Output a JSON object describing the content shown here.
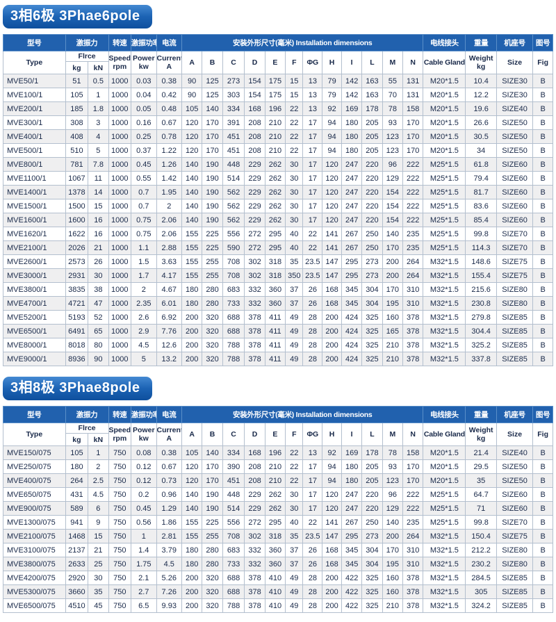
{
  "page": {
    "background": "#ffffff"
  },
  "colors": {
    "banner_blue_top": "#4489d2",
    "banner_blue_bottom": "#0e4f9d",
    "header_blue": "#2161ae",
    "header_text": "#ffffff",
    "body_text": "#1a2a4a",
    "row_alt": "#efeff0",
    "border": "#b3bfce"
  },
  "sections": [
    {
      "banner": "3相6极  3Phae6pole",
      "table": {
        "header": {
          "type_cn": "型号",
          "type_en": "Type",
          "force_cn": "激振力",
          "force_en": "Flrce",
          "force_kg": "kg",
          "force_kn": "kN",
          "speed_cn": "转速",
          "speed_en": "Speed",
          "speed_unit": "rpm",
          "power_cn": "激振功率",
          "power_en": "Power",
          "power_unit": "kw",
          "current_cn": "电流",
          "current_en": "Current",
          "current_unit": "A",
          "dims_label": "安装外形尺寸(毫米) Installation dimensions",
          "dim_cols": [
            "A",
            "B",
            "C",
            "D",
            "E",
            "F",
            "ΦG",
            "H",
            "I",
            "L",
            "M",
            "N"
          ],
          "cable_cn": "电线接头",
          "cable_en": "Cable Gland",
          "weight_cn": "重量",
          "weight_en": "Weight",
          "weight_unit": "kg",
          "size_cn": "机座号",
          "size_en": "Size",
          "fig_cn": "图号",
          "fig_en": "Fig"
        },
        "rows": [
          [
            "MVE50/1",
            "51",
            "0.5",
            "1000",
            "0.03",
            "0.38",
            "90",
            "125",
            "273",
            "154",
            "175",
            "15",
            "13",
            "79",
            "142",
            "163",
            "55",
            "131",
            "M20*1.5",
            "10.4",
            "SIZE30",
            "B"
          ],
          [
            "MVE100/1",
            "105",
            "1",
            "1000",
            "0.04",
            "0.42",
            "90",
            "125",
            "303",
            "154",
            "175",
            "15",
            "13",
            "79",
            "142",
            "163",
            "70",
            "131",
            "M20*1.5",
            "12.2",
            "SIZE30",
            "B"
          ],
          [
            "MVE200/1",
            "185",
            "1.8",
            "1000",
            "0.05",
            "0.48",
            "105",
            "140",
            "334",
            "168",
            "196",
            "22",
            "13",
            "92",
            "169",
            "178",
            "78",
            "158",
            "M20*1.5",
            "19.6",
            "SIZE40",
            "B"
          ],
          [
            "MVE300/1",
            "308",
            "3",
            "1000",
            "0.16",
            "0.67",
            "120",
            "170",
            "391",
            "208",
            "210",
            "22",
            "17",
            "94",
            "180",
            "205",
            "93",
            "170",
            "M20*1.5",
            "26.6",
            "SIZE50",
            "B"
          ],
          [
            "MVE400/1",
            "408",
            "4",
            "1000",
            "0.25",
            "0.78",
            "120",
            "170",
            "451",
            "208",
            "210",
            "22",
            "17",
            "94",
            "180",
            "205",
            "123",
            "170",
            "M20*1.5",
            "30.5",
            "SIZE50",
            "B"
          ],
          [
            "MVE500/1",
            "510",
            "5",
            "1000",
            "0.37",
            "1.22",
            "120",
            "170",
            "451",
            "208",
            "210",
            "22",
            "17",
            "94",
            "180",
            "205",
            "123",
            "170",
            "M20*1.5",
            "34",
            "SIZE50",
            "B"
          ],
          [
            "MVE800/1",
            "781",
            "7.8",
            "1000",
            "0.45",
            "1.26",
            "140",
            "190",
            "448",
            "229",
            "262",
            "30",
            "17",
            "120",
            "247",
            "220",
            "96",
            "222",
            "M25*1.5",
            "61.8",
            "SIZE60",
            "B"
          ],
          [
            "MVE1100/1",
            "1067",
            "11",
            "1000",
            "0.55",
            "1.42",
            "140",
            "190",
            "514",
            "229",
            "262",
            "30",
            "17",
            "120",
            "247",
            "220",
            "129",
            "222",
            "M25*1.5",
            "79.4",
            "SIZE60",
            "B"
          ],
          [
            "MVE1400/1",
            "1378",
            "14",
            "1000",
            "0.7",
            "1.95",
            "140",
            "190",
            "562",
            "229",
            "262",
            "30",
            "17",
            "120",
            "247",
            "220",
            "154",
            "222",
            "M25*1.5",
            "81.7",
            "SIZE60",
            "B"
          ],
          [
            "MVE1500/1",
            "1500",
            "15",
            "1000",
            "0.7",
            "2",
            "140",
            "190",
            "562",
            "229",
            "262",
            "30",
            "17",
            "120",
            "247",
            "220",
            "154",
            "222",
            "M25*1.5",
            "83.6",
            "SIZE60",
            "B"
          ],
          [
            "MVE1600/1",
            "1600",
            "16",
            "1000",
            "0.75",
            "2.06",
            "140",
            "190",
            "562",
            "229",
            "262",
            "30",
            "17",
            "120",
            "247",
            "220",
            "154",
            "222",
            "M25*1.5",
            "85.4",
            "SIZE60",
            "B"
          ],
          [
            "MVE1620/1",
            "1622",
            "16",
            "1000",
            "0.75",
            "2.06",
            "155",
            "225",
            "556",
            "272",
            "295",
            "40",
            "22",
            "141",
            "267",
            "250",
            "140",
            "235",
            "M25*1.5",
            "99.8",
            "SIZE70",
            "B"
          ],
          [
            "MVE2100/1",
            "2026",
            "21",
            "1000",
            "1.1",
            "2.88",
            "155",
            "225",
            "590",
            "272",
            "295",
            "40",
            "22",
            "141",
            "267",
            "250",
            "170",
            "235",
            "M25*1.5",
            "114.3",
            "SIZE70",
            "B"
          ],
          [
            "MVE2600/1",
            "2573",
            "26",
            "1000",
            "1.5",
            "3.63",
            "155",
            "255",
            "708",
            "302",
            "318",
            "35",
            "23.5",
            "147",
            "295",
            "273",
            "200",
            "264",
            "M32*1.5",
            "148.6",
            "SIZE75",
            "B"
          ],
          [
            "MVE3000/1",
            "2931",
            "30",
            "1000",
            "1.7",
            "4.17",
            "155",
            "255",
            "708",
            "302",
            "318",
            "350",
            "23.5",
            "147",
            "295",
            "273",
            "200",
            "264",
            "M32*1.5",
            "155.4",
            "SIZE75",
            "B"
          ],
          [
            "MVE3800/1",
            "3835",
            "38",
            "1000",
            "2",
            "4.67",
            "180",
            "280",
            "683",
            "332",
            "360",
            "37",
            "26",
            "168",
            "345",
            "304",
            "170",
            "310",
            "M32*1.5",
            "215.6",
            "SIZE80",
            "B"
          ],
          [
            "MVE4700/1",
            "4721",
            "47",
            "1000",
            "2.35",
            "6.01",
            "180",
            "280",
            "733",
            "332",
            "360",
            "37",
            "26",
            "168",
            "345",
            "304",
            "195",
            "310",
            "M32*1.5",
            "230.8",
            "SIZE80",
            "B"
          ],
          [
            "MVE5200/1",
            "5193",
            "52",
            "1000",
            "2.6",
            "6.92",
            "200",
            "320",
            "688",
            "378",
            "411",
            "49",
            "28",
            "200",
            "424",
            "325",
            "160",
            "378",
            "M32*1.5",
            "279.8",
            "SIZE85",
            "B"
          ],
          [
            "MVE6500/1",
            "6491",
            "65",
            "1000",
            "2.9",
            "7.76",
            "200",
            "320",
            "688",
            "378",
            "411",
            "49",
            "28",
            "200",
            "424",
            "325",
            "165",
            "378",
            "M32*1.5",
            "304.4",
            "SIZE85",
            "B"
          ],
          [
            "MVE8000/1",
            "8018",
            "80",
            "1000",
            "4.5",
            "12.6",
            "200",
            "320",
            "788",
            "378",
            "411",
            "49",
            "28",
            "200",
            "424",
            "325",
            "210",
            "378",
            "M32*1.5",
            "325.2",
            "SIZE85",
            "B"
          ],
          [
            "MVE9000/1",
            "8936",
            "90",
            "1000",
            "5",
            "13.2",
            "200",
            "320",
            "788",
            "378",
            "411",
            "49",
            "28",
            "200",
            "424",
            "325",
            "210",
            "378",
            "M32*1.5",
            "337.8",
            "SIZE85",
            "B"
          ]
        ]
      }
    },
    {
      "banner": "3相8极  3Phae8pole",
      "table": {
        "header": {
          "type_cn": "型号",
          "type_en": "Type",
          "force_cn": "激振力",
          "force_en": "Flrce",
          "force_kg": "kg",
          "force_kn": "kN",
          "speed_cn": "转速",
          "speed_en": "Speed",
          "speed_unit": "rpm",
          "power_cn": "激振功率",
          "power_en": "Power",
          "power_unit": "kw",
          "current_cn": "电流",
          "current_en": "Current",
          "current_unit": "A",
          "dims_label": "安装外形尺寸(毫米) Installation dimensions",
          "dim_cols": [
            "A",
            "B",
            "C",
            "D",
            "E",
            "F",
            "ΦG",
            "H",
            "I",
            "L",
            "M",
            "N"
          ],
          "cable_cn": "电线接头",
          "cable_en": "Cable Gland",
          "weight_cn": "重量",
          "weight_en": "Weight",
          "weight_unit": "kg",
          "size_cn": "机座号",
          "size_en": "Size",
          "fig_cn": "图号",
          "fig_en": "Fig"
        },
        "rows": [
          [
            "MVE150/075",
            "105",
            "1",
            "750",
            "0.08",
            "0.38",
            "105",
            "140",
            "334",
            "168",
            "196",
            "22",
            "13",
            "92",
            "169",
            "178",
            "78",
            "158",
            "M20*1.5",
            "21.4",
            "SIZE40",
            "B"
          ],
          [
            "MVE250/075",
            "180",
            "2",
            "750",
            "0.12",
            "0.67",
            "120",
            "170",
            "390",
            "208",
            "210",
            "22",
            "17",
            "94",
            "180",
            "205",
            "93",
            "170",
            "M20*1.5",
            "29.5",
            "SIZE50",
            "B"
          ],
          [
            "MVE400/075",
            "264",
            "2.5",
            "750",
            "0.12",
            "0.73",
            "120",
            "170",
            "451",
            "208",
            "210",
            "22",
            "17",
            "94",
            "180",
            "205",
            "123",
            "170",
            "M20*1.5",
            "35",
            "SIZE50",
            "B"
          ],
          [
            "MVE650/075",
            "431",
            "4.5",
            "750",
            "0.2",
            "0.96",
            "140",
            "190",
            "448",
            "229",
            "262",
            "30",
            "17",
            "120",
            "247",
            "220",
            "96",
            "222",
            "M25*1.5",
            "64.7",
            "SIZE60",
            "B"
          ],
          [
            "MVE900/075",
            "589",
            "6",
            "750",
            "0.45",
            "1.29",
            "140",
            "190",
            "514",
            "229",
            "262",
            "30",
            "17",
            "120",
            "247",
            "220",
            "129",
            "222",
            "M25*1.5",
            "71",
            "SIZE60",
            "B"
          ],
          [
            "MVE1300/075",
            "941",
            "9",
            "750",
            "0.56",
            "1.86",
            "155",
            "225",
            "556",
            "272",
            "295",
            "40",
            "22",
            "141",
            "267",
            "250",
            "140",
            "235",
            "M25*1.5",
            "99.8",
            "SIZE70",
            "B"
          ],
          [
            "MVE2100/075",
            "1468",
            "15",
            "750",
            "1",
            "2.81",
            "155",
            "255",
            "708",
            "302",
            "318",
            "35",
            "23.5",
            "147",
            "295",
            "273",
            "200",
            "264",
            "M32*1.5",
            "150.4",
            "SIZE75",
            "B"
          ],
          [
            "MVE3100/075",
            "2137",
            "21",
            "750",
            "1.4",
            "3.79",
            "180",
            "280",
            "683",
            "332",
            "360",
            "37",
            "26",
            "168",
            "345",
            "304",
            "170",
            "310",
            "M32*1.5",
            "212.2",
            "SIZE80",
            "B"
          ],
          [
            "MVE3800/075",
            "2633",
            "25",
            "750",
            "1.75",
            "4.5",
            "180",
            "280",
            "733",
            "332",
            "360",
            "37",
            "26",
            "168",
            "345",
            "304",
            "195",
            "310",
            "M32*1.5",
            "230.2",
            "SIZE80",
            "B"
          ],
          [
            "MVE4200/075",
            "2920",
            "30",
            "750",
            "2.1",
            "5.26",
            "200",
            "320",
            "688",
            "378",
            "410",
            "49",
            "28",
            "200",
            "422",
            "325",
            "160",
            "378",
            "M32*1.5",
            "284.5",
            "SIZE85",
            "B"
          ],
          [
            "MVE5300/075",
            "3660",
            "35",
            "750",
            "2.7",
            "7.26",
            "200",
            "320",
            "688",
            "378",
            "410",
            "49",
            "28",
            "200",
            "422",
            "325",
            "160",
            "378",
            "M32*1.5",
            "305",
            "SIZE85",
            "B"
          ],
          [
            "MVE6500/075",
            "4510",
            "45",
            "750",
            "6.5",
            "9.93",
            "200",
            "320",
            "788",
            "378",
            "410",
            "49",
            "28",
            "200",
            "422",
            "325",
            "210",
            "378",
            "M32*1.5",
            "324.2",
            "SIZE85",
            "B"
          ]
        ]
      }
    }
  ]
}
